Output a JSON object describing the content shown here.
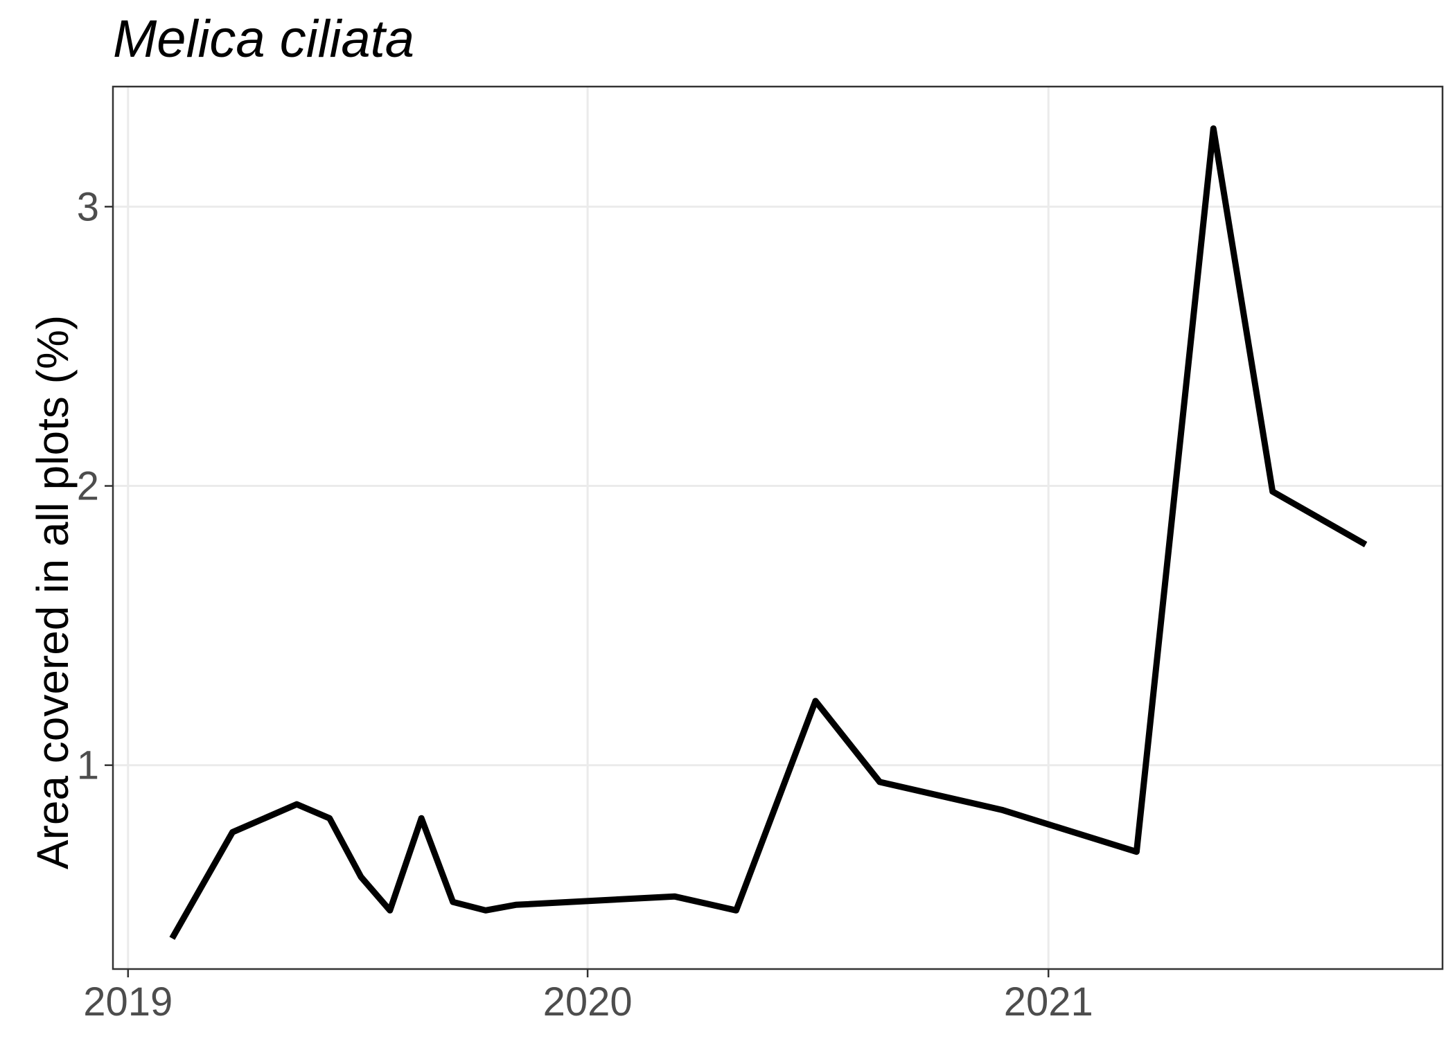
{
  "chart_data": {
    "type": "line",
    "title": "Melica ciliata",
    "xlabel": "",
    "ylabel": "Area covered in all plots (%)",
    "x_ticks": [
      "2019",
      "2020",
      "2021"
    ],
    "y_ticks": [
      "1",
      "2",
      "3"
    ],
    "xlim": [
      "2018-12-20",
      "2021-11-10"
    ],
    "ylim": [
      0.27,
      3.43
    ],
    "grid": true,
    "series": [
      {
        "color": "#000000",
        "points": [
          {
            "x": "2019-02-05",
            "y": 0.38
          },
          {
            "x": "2019-03-25",
            "y": 0.76
          },
          {
            "x": "2019-05-15",
            "y": 0.86
          },
          {
            "x": "2019-06-10",
            "y": 0.81
          },
          {
            "x": "2019-07-05",
            "y": 0.6
          },
          {
            "x": "2019-07-28",
            "y": 0.48
          },
          {
            "x": "2019-08-22",
            "y": 0.81
          },
          {
            "x": "2019-09-16",
            "y": 0.51
          },
          {
            "x": "2019-10-12",
            "y": 0.48
          },
          {
            "x": "2019-11-05",
            "y": 0.5
          },
          {
            "x": "2020-03-10",
            "y": 0.53
          },
          {
            "x": "2020-04-28",
            "y": 0.48
          },
          {
            "x": "2020-06-30",
            "y": 1.23
          },
          {
            "x": "2020-08-20",
            "y": 0.94
          },
          {
            "x": "2020-11-25",
            "y": 0.84
          },
          {
            "x": "2021-03-12",
            "y": 0.69
          },
          {
            "x": "2021-05-12",
            "y": 3.28
          },
          {
            "x": "2021-06-28",
            "y": 1.98
          },
          {
            "x": "2021-09-10",
            "y": 1.79
          }
        ]
      }
    ]
  }
}
